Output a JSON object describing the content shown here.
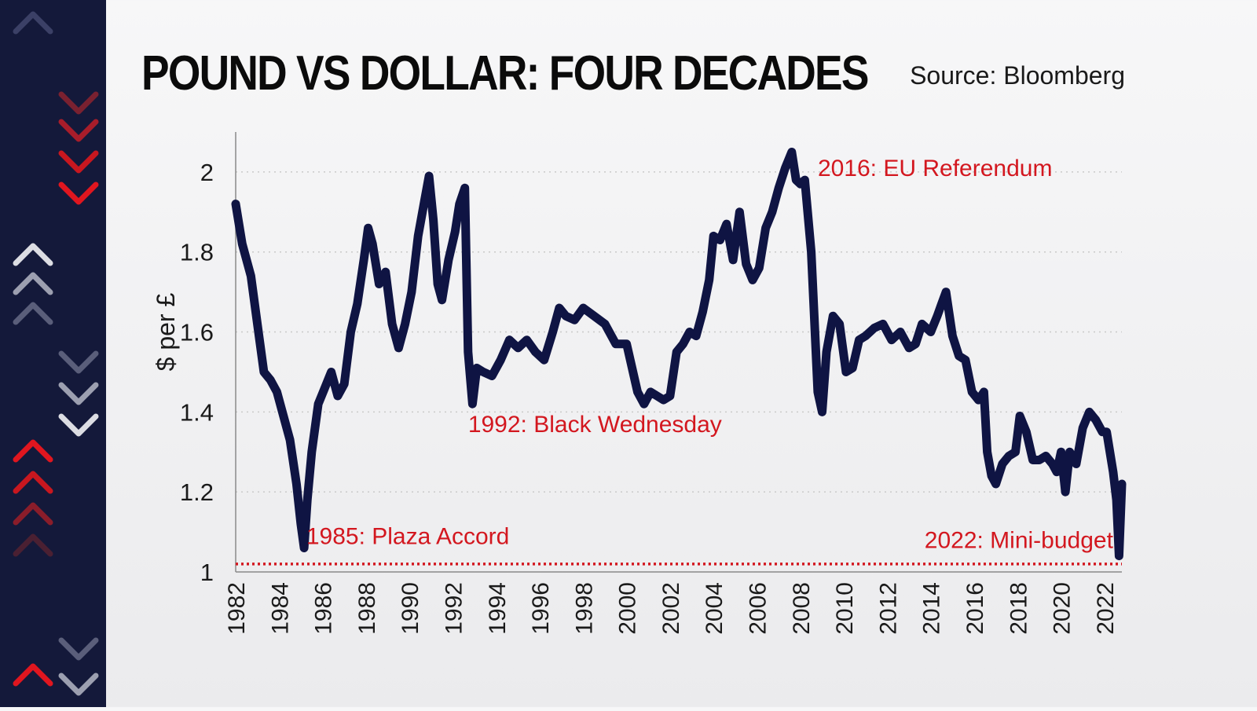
{
  "header": {
    "title": "POUND VS DOLLAR: FOUR DECADES",
    "source": "Source: Bloomberg"
  },
  "colors": {
    "line": "#0f1443",
    "accent": "#d3171f",
    "strip": "#14193a",
    "grid": "#c9c9c9"
  },
  "chart_data": {
    "type": "line",
    "ylabel": "$ per £",
    "xlabel": "",
    "xlim": [
      1982,
      2022.8
    ],
    "ylim": [
      1,
      2.1
    ],
    "grid": "horizontal dotted",
    "yticks": [
      1,
      1.2,
      1.4,
      1.6,
      1.8,
      2
    ],
    "ytick_labels": [
      "1",
      "1.2",
      "1.4",
      "1.6",
      "1.8",
      "2"
    ],
    "xticks": [
      "1982",
      "1984",
      "1986",
      "1988",
      "1990",
      "1992",
      "1994",
      "1996",
      "1998",
      "2000",
      "2002",
      "2004",
      "2006",
      "2008",
      "2010",
      "2012",
      "2014",
      "2016",
      "2018",
      "2020",
      "2022"
    ],
    "series": [
      {
        "x": [
          1982.0,
          1982.3,
          1982.7,
          1983.0,
          1983.3,
          1983.6,
          1983.9,
          1984.2,
          1984.5,
          1984.8,
          1985.0,
          1985.15,
          1985.3,
          1985.5,
          1985.8,
          1986.1,
          1986.4,
          1986.7,
          1987.0,
          1987.3,
          1987.6,
          1987.9,
          1988.1,
          1988.3,
          1988.6,
          1988.9,
          1989.2,
          1989.5,
          1989.8,
          1990.1,
          1990.4,
          1990.7,
          1990.9,
          1991.1,
          1991.3,
          1991.5,
          1991.8,
          1992.1,
          1992.3,
          1992.55,
          1992.7,
          1992.9,
          1993.1,
          1993.4,
          1993.8,
          1994.2,
          1994.6,
          1995.0,
          1995.4,
          1995.8,
          1996.2,
          1996.6,
          1996.9,
          1997.2,
          1997.6,
          1998.0,
          1998.5,
          1999.0,
          1999.5,
          2000.0,
          2000.5,
          2000.8,
          2001.1,
          2001.4,
          2001.7,
          2002.0,
          2002.3,
          2002.6,
          2002.9,
          2003.2,
          2003.5,
          2003.8,
          2004.0,
          2004.3,
          2004.6,
          2004.9,
          2005.2,
          2005.5,
          2005.8,
          2006.1,
          2006.4,
          2006.7,
          2007.0,
          2007.3,
          2007.6,
          2007.8,
          2008.0,
          2008.2,
          2008.5,
          2008.8,
          2009.0,
          2009.2,
          2009.5,
          2009.8,
          2010.1,
          2010.4,
          2010.7,
          2011.0,
          2011.4,
          2011.8,
          2012.2,
          2012.6,
          2013.0,
          2013.3,
          2013.6,
          2014.0,
          2014.3,
          2014.5,
          2014.7,
          2015.0,
          2015.3,
          2015.6,
          2015.9,
          2016.2,
          2016.45,
          2016.6,
          2016.8,
          2017.0,
          2017.3,
          2017.6,
          2017.9,
          2018.1,
          2018.4,
          2018.7,
          2019.0,
          2019.3,
          2019.6,
          2019.8,
          2020.0,
          2020.2,
          2020.4,
          2020.7,
          2021.0,
          2021.3,
          2021.6,
          2021.9,
          2022.1,
          2022.4,
          2022.55,
          2022.67,
          2022.75,
          2022.8
        ],
        "values": [
          1.92,
          1.82,
          1.74,
          1.62,
          1.5,
          1.48,
          1.45,
          1.39,
          1.33,
          1.22,
          1.12,
          1.06,
          1.18,
          1.3,
          1.42,
          1.46,
          1.5,
          1.44,
          1.47,
          1.6,
          1.67,
          1.78,
          1.86,
          1.82,
          1.72,
          1.75,
          1.62,
          1.56,
          1.62,
          1.7,
          1.84,
          1.93,
          1.99,
          1.88,
          1.72,
          1.68,
          1.78,
          1.85,
          1.92,
          1.96,
          1.55,
          1.42,
          1.51,
          1.5,
          1.49,
          1.53,
          1.58,
          1.56,
          1.58,
          1.55,
          1.53,
          1.6,
          1.66,
          1.64,
          1.63,
          1.66,
          1.64,
          1.62,
          1.57,
          1.57,
          1.45,
          1.42,
          1.45,
          1.44,
          1.43,
          1.44,
          1.55,
          1.57,
          1.6,
          1.59,
          1.65,
          1.73,
          1.84,
          1.83,
          1.87,
          1.78,
          1.9,
          1.77,
          1.73,
          1.76,
          1.86,
          1.9,
          1.96,
          2.01,
          2.05,
          1.98,
          1.97,
          1.98,
          1.8,
          1.45,
          1.4,
          1.55,
          1.64,
          1.62,
          1.5,
          1.51,
          1.58,
          1.59,
          1.61,
          1.62,
          1.58,
          1.6,
          1.56,
          1.57,
          1.62,
          1.6,
          1.64,
          1.67,
          1.7,
          1.59,
          1.54,
          1.53,
          1.45,
          1.43,
          1.45,
          1.3,
          1.24,
          1.22,
          1.27,
          1.29,
          1.3,
          1.39,
          1.35,
          1.28,
          1.28,
          1.29,
          1.27,
          1.25,
          1.3,
          1.2,
          1.3,
          1.27,
          1.36,
          1.4,
          1.38,
          1.35,
          1.35,
          1.25,
          1.18,
          1.04,
          1.15,
          1.22
        ]
      }
    ],
    "reference_line": {
      "y": 1.02,
      "style": "dotted",
      "color": "#d3171f"
    },
    "annotations": [
      {
        "text": "1985: Plaza Accord",
        "x": 1985.25,
        "y": 1.07
      },
      {
        "text": "1992: Black Wednesday",
        "x": 1992.7,
        "y": 1.35
      },
      {
        "text": "2016: EU Referendum",
        "x": 2008.8,
        "y": 1.99
      },
      {
        "text": "2022: Mini-budget",
        "x": 2022.4,
        "y": 1.06
      }
    ]
  }
}
